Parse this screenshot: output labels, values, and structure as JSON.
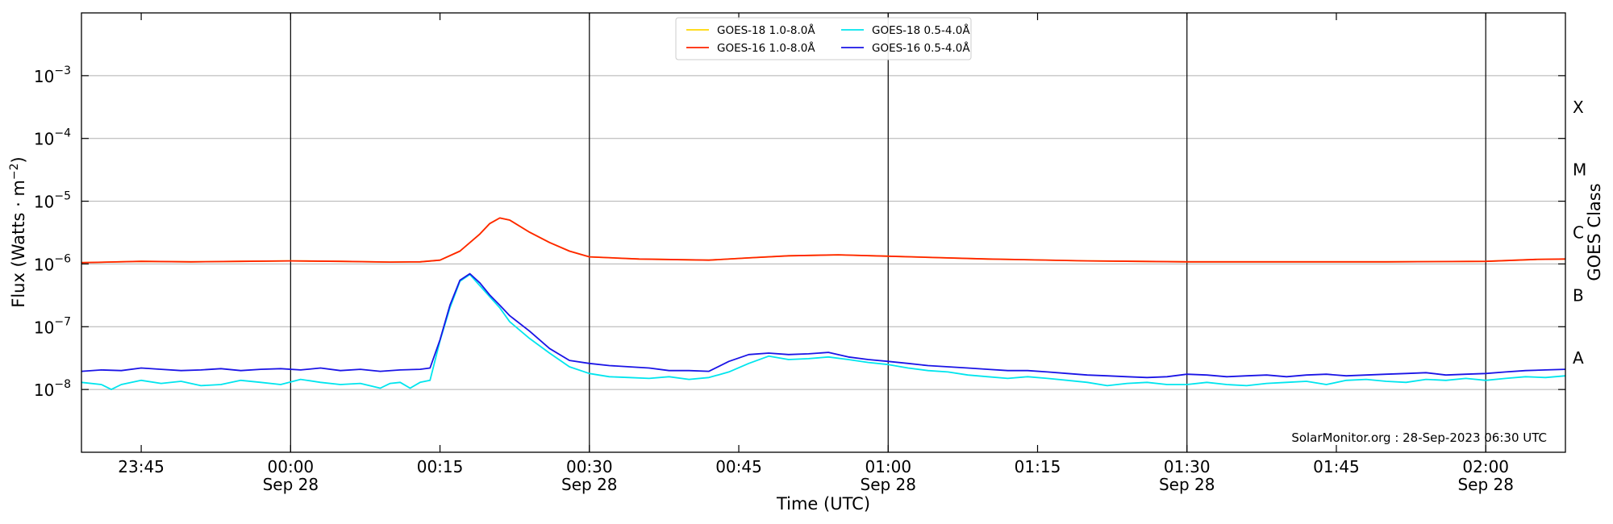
{
  "chart_data": {
    "type": "line",
    "xlabel": "Time (UTC)",
    "ylabel_parts": [
      "Flux (Watts · m",
      "−2",
      ")"
    ],
    "right_label": "GOES Class",
    "credit": "SolarMonitor.org : 28-Sep-2023 06:30 UTC",
    "y_scale": "log",
    "ylim": [
      1e-09,
      0.01
    ],
    "y_ticks": [
      {
        "mantissa": "10",
        "exponent": "−8",
        "value": 1e-08
      },
      {
        "mantissa": "10",
        "exponent": "−7",
        "value": 1e-07
      },
      {
        "mantissa": "10",
        "exponent": "−6",
        "value": 1e-06
      },
      {
        "mantissa": "10",
        "exponent": "−5",
        "value": 1e-05
      },
      {
        "mantissa": "10",
        "exponent": "−4",
        "value": 0.0001
      },
      {
        "mantissa": "10",
        "exponent": "−3",
        "value": 0.001
      }
    ],
    "xlim": [
      "23:39",
      "02:08"
    ],
    "x_ticks": [
      {
        "time": "23:45",
        "label": "23:45",
        "sub": ""
      },
      {
        "time": "00:00",
        "label": "00:00",
        "sub": "Sep 28"
      },
      {
        "time": "00:15",
        "label": "00:15",
        "sub": ""
      },
      {
        "time": "00:30",
        "label": "00:30",
        "sub": "Sep 28"
      },
      {
        "time": "00:45",
        "label": "00:45",
        "sub": ""
      },
      {
        "time": "01:00",
        "label": "01:00",
        "sub": "Sep 28"
      },
      {
        "time": "01:15",
        "label": "01:15",
        "sub": ""
      },
      {
        "time": "01:30",
        "label": "01:30",
        "sub": "Sep 28"
      },
      {
        "time": "01:45",
        "label": "01:45",
        "sub": ""
      },
      {
        "time": "02:00",
        "label": "02:00",
        "sub": "Sep 28"
      }
    ],
    "vertical_lines": [
      "00:00",
      "00:30",
      "01:00",
      "01:30",
      "02:00"
    ],
    "horizontal_grid": [
      1e-08,
      1e-07,
      1e-06,
      1e-05,
      0.0001,
      0.001
    ],
    "goes_classes": [
      {
        "label": "A",
        "value": 1e-08
      },
      {
        "label": "B",
        "value": 1e-07
      },
      {
        "label": "C",
        "value": 1e-06
      },
      {
        "label": "M",
        "value": 1e-05
      },
      {
        "label": "X",
        "value": 0.0001
      }
    ],
    "legend_placement": "top-center",
    "series": [
      {
        "name": "GOES-18 1.0-8.0Å",
        "color": "#ffd700",
        "x": [
          "23:39",
          "23:45",
          "23:50",
          "23:55",
          "00:00",
          "00:05",
          "00:10",
          "00:13",
          "00:15",
          "00:17",
          "00:19",
          "00:20",
          "00:21",
          "00:22",
          "00:24",
          "00:26",
          "00:28",
          "00:30",
          "00:35",
          "00:42",
          "00:46",
          "00:50",
          "00:55",
          "01:00",
          "01:10",
          "01:20",
          "01:30",
          "01:40",
          "01:50",
          "02:00",
          "02:05",
          "02:08"
        ],
        "y": [
          1.05e-06,
          1.1e-06,
          1.08e-06,
          1.1e-06,
          1.12e-06,
          1.1e-06,
          1.07e-06,
          1.08e-06,
          1.15e-06,
          1.6e-06,
          3e-06,
          4.4e-06,
          5.4e-06,
          5e-06,
          3.2e-06,
          2.2e-06,
          1.6e-06,
          1.3e-06,
          1.2e-06,
          1.15e-06,
          1.25e-06,
          1.35e-06,
          1.4e-06,
          1.33e-06,
          1.2e-06,
          1.12e-06,
          1.08e-06,
          1.08e-06,
          1.08e-06,
          1.1e-06,
          1.18e-06,
          1.2e-06
        ]
      },
      {
        "name": "GOES-16 1.0-8.0Å",
        "color": "#ff2200",
        "x": [
          "23:39",
          "23:45",
          "23:50",
          "23:55",
          "00:00",
          "00:05",
          "00:10",
          "00:13",
          "00:15",
          "00:17",
          "00:19",
          "00:20",
          "00:21",
          "00:22",
          "00:24",
          "00:26",
          "00:28",
          "00:30",
          "00:35",
          "00:42",
          "00:46",
          "00:50",
          "00:55",
          "01:00",
          "01:10",
          "01:20",
          "01:30",
          "01:40",
          "01:50",
          "02:00",
          "02:05",
          "02:08"
        ],
        "y": [
          1.05e-06,
          1.1e-06,
          1.08e-06,
          1.1e-06,
          1.12e-06,
          1.1e-06,
          1.07e-06,
          1.08e-06,
          1.15e-06,
          1.6e-06,
          3e-06,
          4.4e-06,
          5.4e-06,
          5e-06,
          3.2e-06,
          2.2e-06,
          1.6e-06,
          1.3e-06,
          1.2e-06,
          1.15e-06,
          1.25e-06,
          1.35e-06,
          1.4e-06,
          1.33e-06,
          1.2e-06,
          1.12e-06,
          1.08e-06,
          1.08e-06,
          1.08e-06,
          1.1e-06,
          1.18e-06,
          1.2e-06
        ]
      },
      {
        "name": "GOES-18 0.5-4.0Å",
        "color": "#00e5ee",
        "x": [
          "23:39",
          "23:41",
          "23:42",
          "23:43",
          "23:45",
          "23:47",
          "23:49",
          "23:51",
          "23:53",
          "23:55",
          "23:57",
          "23:59",
          "00:01",
          "00:03",
          "00:05",
          "00:07",
          "00:09",
          "00:10",
          "00:11",
          "00:12",
          "00:13",
          "00:14",
          "00:15",
          "00:16",
          "00:17",
          "00:18",
          "00:19",
          "00:20",
          "00:21",
          "00:22",
          "00:24",
          "00:26",
          "00:28",
          "00:30",
          "00:32",
          "00:34",
          "00:36",
          "00:38",
          "00:40",
          "00:42",
          "00:44",
          "00:46",
          "00:48",
          "00:50",
          "00:52",
          "00:54",
          "00:56",
          "00:58",
          "01:00",
          "01:02",
          "01:04",
          "01:06",
          "01:08",
          "01:10",
          "01:12",
          "01:14",
          "01:16",
          "01:18",
          "01:20",
          "01:22",
          "01:24",
          "01:26",
          "01:28",
          "01:30",
          "01:32",
          "01:34",
          "01:36",
          "01:38",
          "01:40",
          "01:42",
          "01:44",
          "01:46",
          "01:48",
          "01:50",
          "01:52",
          "01:54",
          "01:56",
          "01:58",
          "02:00",
          "02:02",
          "02:04",
          "02:06",
          "02:08"
        ],
        "y": [
          1.3e-08,
          1.2e-08,
          1e-08,
          1.2e-08,
          1.4e-08,
          1.25e-08,
          1.35e-08,
          1.15e-08,
          1.2e-08,
          1.4e-08,
          1.3e-08,
          1.2e-08,
          1.45e-08,
          1.3e-08,
          1.2e-08,
          1.25e-08,
          1.05e-08,
          1.25e-08,
          1.3e-08,
          1.05e-08,
          1.3e-08,
          1.4e-08,
          6e-08,
          2e-07,
          5.3e-07,
          6.8e-07,
          4.5e-07,
          3e-07,
          2e-07,
          1.2e-07,
          6.5e-08,
          3.8e-08,
          2.3e-08,
          1.8e-08,
          1.6e-08,
          1.55e-08,
          1.5e-08,
          1.6e-08,
          1.45e-08,
          1.55e-08,
          1.9e-08,
          2.6e-08,
          3.4e-08,
          3e-08,
          3.1e-08,
          3.3e-08,
          3e-08,
          2.7e-08,
          2.5e-08,
          2.2e-08,
          2e-08,
          1.9e-08,
          1.7e-08,
          1.6e-08,
          1.5e-08,
          1.6e-08,
          1.5e-08,
          1.4e-08,
          1.3e-08,
          1.15e-08,
          1.25e-08,
          1.3e-08,
          1.2e-08,
          1.2e-08,
          1.3e-08,
          1.2e-08,
          1.15e-08,
          1.25e-08,
          1.3e-08,
          1.35e-08,
          1.2e-08,
          1.4e-08,
          1.45e-08,
          1.35e-08,
          1.3e-08,
          1.45e-08,
          1.4e-08,
          1.5e-08,
          1.4e-08,
          1.5e-08,
          1.6e-08,
          1.55e-08,
          1.65e-08
        ]
      },
      {
        "name": "GOES-16 0.5-4.0Å",
        "color": "#1a14e6",
        "x": [
          "23:39",
          "23:41",
          "23:43",
          "23:45",
          "23:47",
          "23:49",
          "23:51",
          "23:53",
          "23:55",
          "23:57",
          "23:59",
          "00:01",
          "00:03",
          "00:05",
          "00:07",
          "00:09",
          "00:11",
          "00:13",
          "00:14",
          "00:15",
          "00:16",
          "00:17",
          "00:18",
          "00:19",
          "00:20",
          "00:21",
          "00:22",
          "00:24",
          "00:26",
          "00:28",
          "00:30",
          "00:32",
          "00:34",
          "00:36",
          "00:38",
          "00:40",
          "00:42",
          "00:44",
          "00:46",
          "00:48",
          "00:50",
          "00:52",
          "00:54",
          "00:56",
          "00:58",
          "01:00",
          "01:02",
          "01:04",
          "01:06",
          "01:08",
          "01:10",
          "01:12",
          "01:14",
          "01:16",
          "01:18",
          "01:20",
          "01:22",
          "01:24",
          "01:26",
          "01:28",
          "01:30",
          "01:32",
          "01:34",
          "01:36",
          "01:38",
          "01:40",
          "01:42",
          "01:44",
          "01:46",
          "01:48",
          "01:50",
          "01:52",
          "01:54",
          "01:56",
          "01:58",
          "02:00",
          "02:02",
          "02:04",
          "02:06",
          "02:08"
        ],
        "y": [
          1.95e-08,
          2.05e-08,
          2e-08,
          2.2e-08,
          2.1e-08,
          2e-08,
          2.05e-08,
          2.15e-08,
          2e-08,
          2.1e-08,
          2.15e-08,
          2.05e-08,
          2.2e-08,
          2e-08,
          2.1e-08,
          1.95e-08,
          2.05e-08,
          2.1e-08,
          2.2e-08,
          6.2e-08,
          2.2e-07,
          5.5e-07,
          7e-07,
          5e-07,
          3.2e-07,
          2.2e-07,
          1.5e-07,
          8.5e-08,
          4.5e-08,
          2.9e-08,
          2.6e-08,
          2.4e-08,
          2.3e-08,
          2.2e-08,
          2e-08,
          2e-08,
          1.95e-08,
          2.8e-08,
          3.6e-08,
          3.8e-08,
          3.6e-08,
          3.7e-08,
          3.9e-08,
          3.3e-08,
          3e-08,
          2.8e-08,
          2.6e-08,
          2.4e-08,
          2.3e-08,
          2.2e-08,
          2.1e-08,
          2e-08,
          2e-08,
          1.9e-08,
          1.8e-08,
          1.7e-08,
          1.65e-08,
          1.6e-08,
          1.55e-08,
          1.6e-08,
          1.75e-08,
          1.7e-08,
          1.6e-08,
          1.65e-08,
          1.7e-08,
          1.6e-08,
          1.7e-08,
          1.75e-08,
          1.65e-08,
          1.7e-08,
          1.75e-08,
          1.8e-08,
          1.85e-08,
          1.7e-08,
          1.75e-08,
          1.8e-08,
          1.9e-08,
          2e-08,
          2.05e-08,
          2.1e-08
        ]
      }
    ]
  }
}
